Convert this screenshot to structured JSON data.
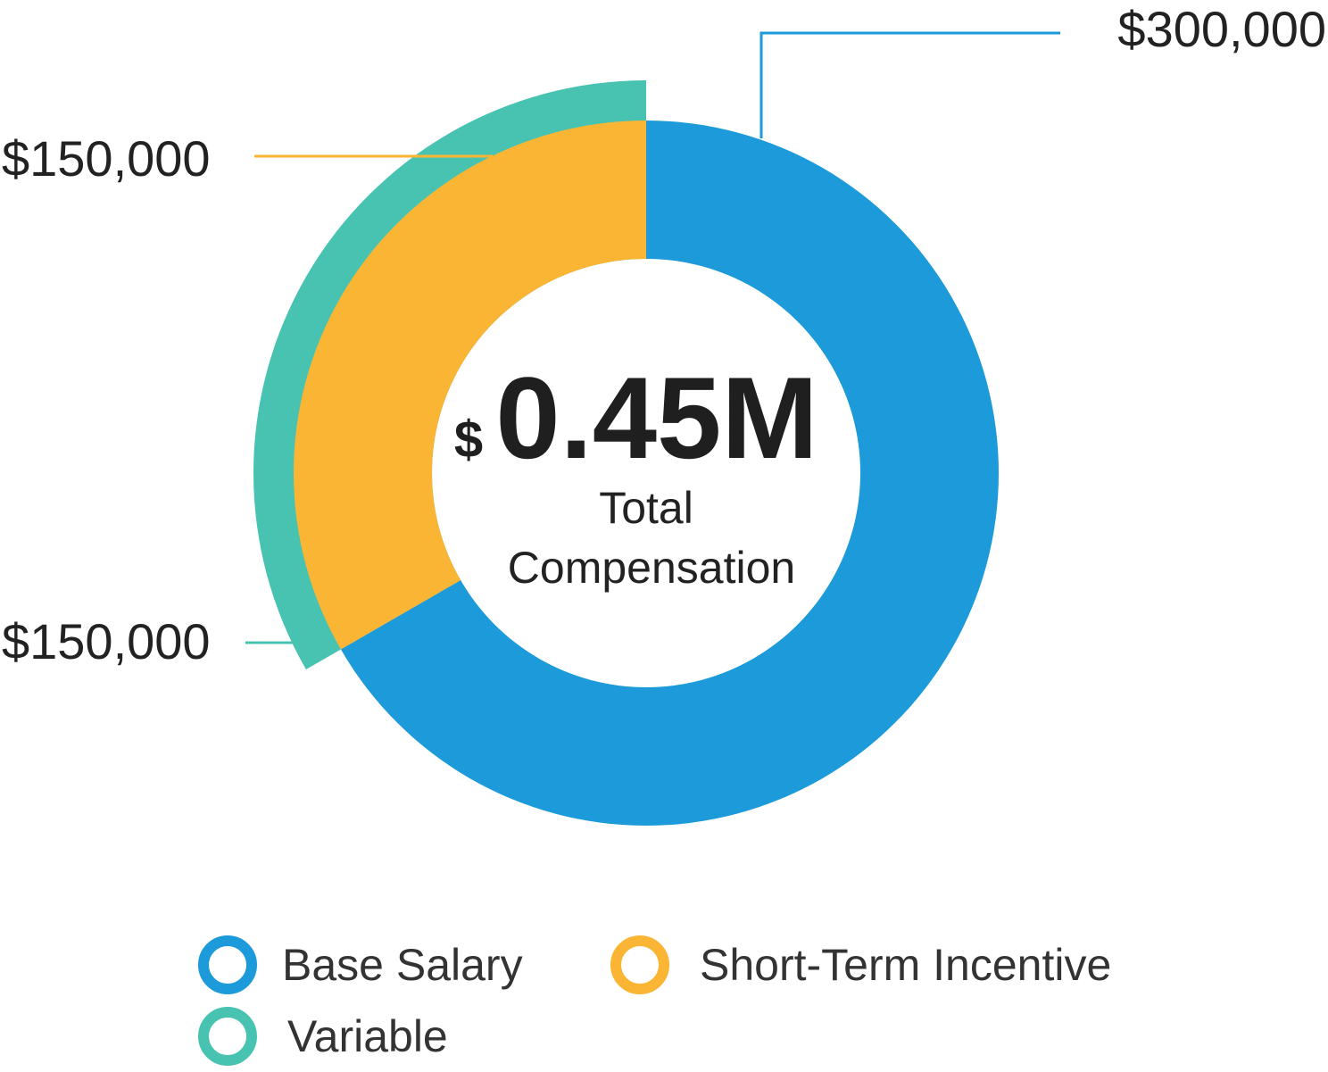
{
  "chart_data": {
    "type": "pie",
    "variant": "donut",
    "center": {
      "currency_symbol": "$",
      "value_text": "0.45M",
      "label_line1": "Total",
      "label_line2": "Compensation"
    },
    "slices": [
      {
        "key": "base",
        "name": "Base Salary",
        "value": 300000,
        "label": "$300,000",
        "color": "#1d9ad9",
        "ring": "main"
      },
      {
        "key": "sti",
        "name": "Short-Term Incentive",
        "value": 150000,
        "label": "$150,000",
        "color": "#fbb534",
        "ring": "main"
      }
    ],
    "overlay": {
      "key": "variable",
      "name": "Variable",
      "value": 150000,
      "label": "$150,000",
      "color": "#48c3b1",
      "ring": "outer",
      "spans": "sti"
    },
    "total": 450000,
    "legend_position": "bottom"
  },
  "legend": {
    "items": [
      {
        "label": "Base Salary",
        "color": "#1d9ad9"
      },
      {
        "label": "Short-Term Incentive",
        "color": "#fbb534"
      },
      {
        "label": "Variable",
        "color": "#48c3b1"
      }
    ]
  }
}
